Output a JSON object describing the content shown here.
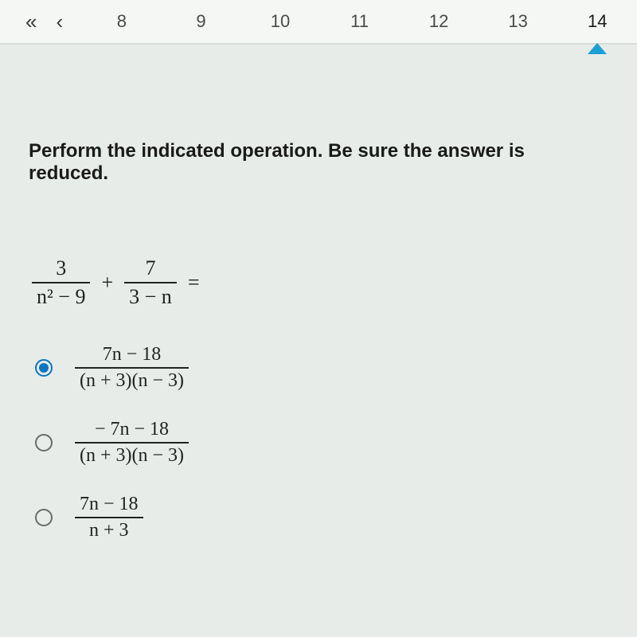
{
  "nav": {
    "first_label": "«",
    "prev_label": "‹",
    "items": [
      {
        "label": "8"
      },
      {
        "label": "9"
      },
      {
        "label": "10"
      },
      {
        "label": "11"
      },
      {
        "label": "12"
      },
      {
        "label": "13"
      },
      {
        "label": "14",
        "current": true
      }
    ]
  },
  "question": {
    "prompt": "Perform the indicated operation. Be sure the answer is reduced.",
    "expression": {
      "term1": {
        "numerator": "3",
        "denominator": "n² − 9"
      },
      "plus": "+",
      "term2": {
        "numerator": "7",
        "denominator": "3 − n"
      },
      "equals": "="
    }
  },
  "options": {
    "selected_index": 0,
    "items": [
      {
        "numerator": "7n − 18",
        "denominator": "(n + 3)(n − 3)"
      },
      {
        "numerator": "− 7n − 18",
        "denominator": "(n + 3)(n − 3)"
      },
      {
        "numerator": "7n − 18",
        "denominator": "n + 3"
      }
    ]
  },
  "colors": {
    "accent": "#0b74c4",
    "marker": "#1a9fd6",
    "background": "#e8ece8",
    "text": "#1a1a1a"
  }
}
